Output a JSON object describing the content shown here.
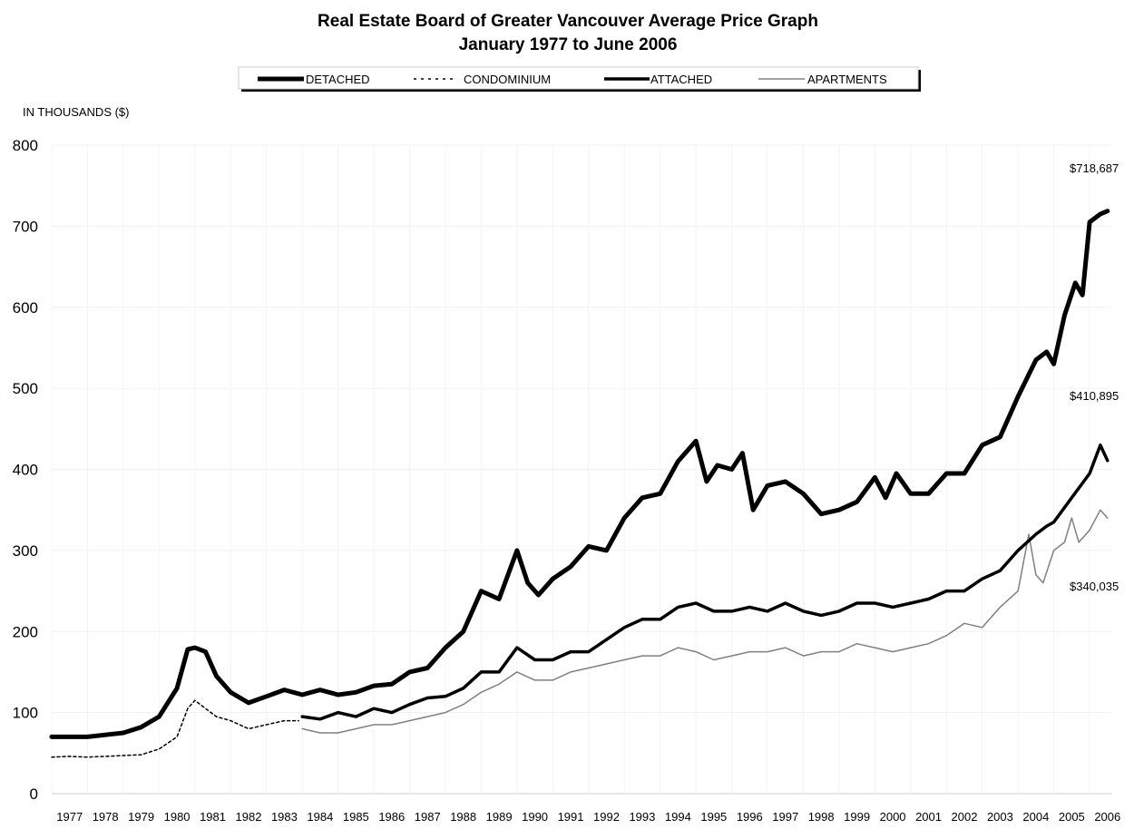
{
  "chart_data": {
    "type": "line",
    "title": "Real Estate Board of Greater Vancouver Average Price Graph",
    "subtitle": "January 1977 to June 2006",
    "ylabel": "IN THOUSANDS ($)",
    "xlabel": "",
    "ylim": [
      0,
      800
    ],
    "xlim": [
      1977,
      2006.5
    ],
    "yticks": [
      "0",
      "100",
      "200",
      "300",
      "400",
      "500",
      "600",
      "700",
      "800"
    ],
    "xticks": [
      "1977",
      "1978",
      "1979",
      "1980",
      "1981",
      "1982",
      "1983",
      "1984",
      "1985",
      "1986",
      "1987",
      "1988",
      "1989",
      "1990",
      "1991",
      "1992",
      "1993",
      "1994",
      "1995",
      "1996",
      "1997",
      "1998",
      "1999",
      "2000",
      "2001",
      "2002",
      "2003",
      "2004",
      "2005",
      "2006"
    ],
    "grid": true,
    "legend_position": "top-center",
    "series": [
      {
        "name": "DETACHED",
        "style": "thick",
        "color": "#000000",
        "x": [
          1977,
          1978,
          1979,
          1979.5,
          1980,
          1980.5,
          1980.8,
          1981,
          1981.3,
          1981.6,
          1982,
          1982.5,
          1983,
          1983.5,
          1984,
          1984.5,
          1985,
          1985.5,
          1986,
          1986.5,
          1987,
          1987.5,
          1988,
          1988.5,
          1989,
          1989.5,
          1990,
          1990.3,
          1990.6,
          1991,
          1991.5,
          1992,
          1992.5,
          1993,
          1993.5,
          1994,
          1994.5,
          1995,
          1995.3,
          1995.6,
          1996,
          1996.3,
          1996.6,
          1997,
          1997.5,
          1998,
          1998.5,
          1999,
          1999.5,
          2000,
          2000.3,
          2000.6,
          2001,
          2001.5,
          2002,
          2002.5,
          2003,
          2003.5,
          2004,
          2004.5,
          2004.8,
          2005,
          2005.3,
          2005.6,
          2005.8,
          2006,
          2006.3,
          2006.5
        ],
        "values": [
          70,
          70,
          75,
          82,
          95,
          130,
          178,
          180,
          175,
          145,
          125,
          112,
          120,
          128,
          122,
          128,
          122,
          125,
          133,
          135,
          150,
          155,
          180,
          200,
          250,
          240,
          300,
          260,
          245,
          265,
          280,
          305,
          300,
          340,
          365,
          370,
          410,
          435,
          385,
          405,
          400,
          420,
          350,
          380,
          385,
          370,
          345,
          350,
          360,
          390,
          365,
          395,
          370,
          370,
          395,
          395,
          430,
          440,
          490,
          535,
          545,
          530,
          590,
          630,
          615,
          705,
          715,
          718.687
        ]
      },
      {
        "name": "CONDOMINIUM",
        "style": "dotted",
        "color": "#000000",
        "x": [
          1977,
          1977.5,
          1978,
          1978.5,
          1979,
          1979.5,
          1980,
          1980.5,
          1980.8,
          1981,
          1981.3,
          1981.6,
          1982,
          1982.5,
          1983,
          1983.5,
          1983.9
        ],
        "values": [
          45,
          46,
          45,
          46,
          47,
          48,
          55,
          70,
          105,
          115,
          105,
          95,
          90,
          80,
          85,
          90,
          90
        ]
      },
      {
        "name": "ATTACHED",
        "style": "medium",
        "color": "#000000",
        "x": [
          1984,
          1984.5,
          1985,
          1985.5,
          1986,
          1986.5,
          1987,
          1987.5,
          1988,
          1988.5,
          1989,
          1989.5,
          1990,
          1990.5,
          1991,
          1991.5,
          1992,
          1992.5,
          1993,
          1993.5,
          1994,
          1994.5,
          1995,
          1995.5,
          1996,
          1996.5,
          1997,
          1997.5,
          1998,
          1998.5,
          1999,
          1999.5,
          2000,
          2000.5,
          2001,
          2001.5,
          2002,
          2002.5,
          2003,
          2003.5,
          2004,
          2004.5,
          2004.8,
          2005,
          2005.5,
          2006,
          2006.3,
          2006.5
        ],
        "values": [
          95,
          92,
          100,
          95,
          105,
          100,
          110,
          118,
          120,
          130,
          150,
          150,
          180,
          165,
          165,
          175,
          175,
          190,
          205,
          215,
          215,
          230,
          235,
          225,
          225,
          230,
          225,
          235,
          225,
          220,
          225,
          235,
          235,
          230,
          235,
          240,
          250,
          250,
          265,
          275,
          300,
          320,
          330,
          335,
          365,
          395,
          430,
          410.895
        ]
      },
      {
        "name": "APARTMENTS",
        "style": "thin",
        "color": "#808080",
        "x": [
          1984,
          1984.5,
          1985,
          1985.5,
          1986,
          1986.5,
          1987,
          1987.5,
          1988,
          1988.5,
          1989,
          1989.5,
          1990,
          1990.5,
          1991,
          1991.5,
          1992,
          1992.5,
          1993,
          1993.5,
          1994,
          1994.5,
          1995,
          1995.5,
          1996,
          1996.5,
          1997,
          1997.5,
          1998,
          1998.5,
          1999,
          1999.5,
          2000,
          2000.5,
          2001,
          2001.5,
          2002,
          2002.5,
          2003,
          2003.5,
          2004,
          2004.3,
          2004.5,
          2004.7,
          2005,
          2005.3,
          2005.5,
          2005.7,
          2006,
          2006.3,
          2006.5
        ],
        "values": [
          80,
          75,
          75,
          80,
          85,
          85,
          90,
          95,
          100,
          110,
          125,
          135,
          150,
          140,
          140,
          150,
          155,
          160,
          165,
          170,
          170,
          180,
          175,
          165,
          170,
          175,
          175,
          180,
          170,
          175,
          175,
          185,
          180,
          175,
          180,
          185,
          195,
          210,
          205,
          230,
          250,
          320,
          270,
          260,
          300,
          310,
          340,
          310,
          325,
          350,
          340.035
        ]
      }
    ],
    "annotations": [
      "$718,687",
      "$410,895",
      "$340,035"
    ]
  }
}
